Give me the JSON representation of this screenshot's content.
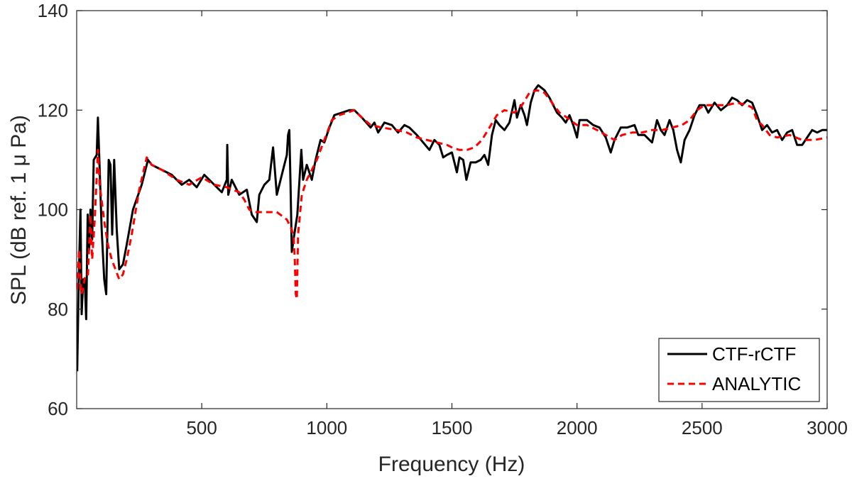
{
  "chart_data": {
    "type": "line",
    "xlabel": "Frequency (Hz)",
    "ylabel": "SPL (dB ref. 1 μ Pa)",
    "xlim": [
      0,
      3000
    ],
    "ylim": [
      60,
      140
    ],
    "xticks": [
      500,
      1000,
      1500,
      2000,
      2500,
      3000
    ],
    "xtick_labels": [
      "500",
      "1000",
      "1500",
      "2000",
      "2500",
      "3000"
    ],
    "yticks": [
      60,
      80,
      100,
      120,
      140
    ],
    "ytick_labels": [
      "60",
      "80",
      "100",
      "120",
      "140"
    ],
    "grid": false,
    "legend_position": "bottom-right",
    "series": [
      {
        "name": "CTF-rCTF",
        "color": "#000000",
        "style": "solid",
        "points": [
          [
            2,
            67.5
          ],
          [
            8,
            85
          ],
          [
            15,
            100
          ],
          [
            20,
            79
          ],
          [
            26,
            86
          ],
          [
            32,
            86
          ],
          [
            38,
            78
          ],
          [
            44,
            99
          ],
          [
            50,
            92
          ],
          [
            55,
            100
          ],
          [
            62,
            94
          ],
          [
            68,
            110
          ],
          [
            80,
            111
          ],
          [
            85,
            118.5
          ],
          [
            92,
            108
          ],
          [
            100,
            96
          ],
          [
            110,
            86
          ],
          [
            118,
            83
          ],
          [
            128,
            110
          ],
          [
            135,
            109
          ],
          [
            142,
            95
          ],
          [
            150,
            110
          ],
          [
            160,
            96
          ],
          [
            170,
            88
          ],
          [
            185,
            89
          ],
          [
            200,
            93
          ],
          [
            225,
            100
          ],
          [
            260,
            105
          ],
          [
            285,
            110
          ],
          [
            300,
            109
          ],
          [
            340,
            108
          ],
          [
            380,
            107
          ],
          [
            400,
            106
          ],
          [
            420,
            105
          ],
          [
            450,
            106
          ],
          [
            480,
            104.5
          ],
          [
            510,
            107
          ],
          [
            550,
            105
          ],
          [
            580,
            103.5
          ],
          [
            600,
            106
          ],
          [
            602,
            113
          ],
          [
            606,
            103
          ],
          [
            620,
            106
          ],
          [
            650,
            103
          ],
          [
            680,
            104
          ],
          [
            700,
            99
          ],
          [
            720,
            97.5
          ],
          [
            730,
            103
          ],
          [
            750,
            105
          ],
          [
            770,
            106
          ],
          [
            785,
            112.5
          ],
          [
            800,
            103
          ],
          [
            825,
            108
          ],
          [
            840,
            111
          ],
          [
            845,
            115
          ],
          [
            850,
            116
          ],
          [
            855,
            105
          ],
          [
            860,
            91.5
          ],
          [
            870,
            95
          ],
          [
            882,
            99
          ],
          [
            898,
            112
          ],
          [
            905,
            106
          ],
          [
            920,
            109
          ],
          [
            940,
            106
          ],
          [
            955,
            110
          ],
          [
            975,
            114
          ],
          [
            990,
            113.5
          ],
          [
            1010,
            116.5
          ],
          [
            1030,
            119
          ],
          [
            1060,
            119.5
          ],
          [
            1090,
            120
          ],
          [
            1110,
            120
          ],
          [
            1140,
            118.5
          ],
          [
            1175,
            116.5
          ],
          [
            1190,
            117.5
          ],
          [
            1205,
            115.5
          ],
          [
            1230,
            117.5
          ],
          [
            1260,
            117
          ],
          [
            1285,
            115.5
          ],
          [
            1310,
            117
          ],
          [
            1330,
            116.5
          ],
          [
            1360,
            115
          ],
          [
            1385,
            113.5
          ],
          [
            1410,
            112
          ],
          [
            1430,
            114
          ],
          [
            1450,
            113
          ],
          [
            1465,
            110.5
          ],
          [
            1480,
            111
          ],
          [
            1500,
            111.5
          ],
          [
            1520,
            107.5
          ],
          [
            1530,
            110.5
          ],
          [
            1545,
            110
          ],
          [
            1558,
            106
          ],
          [
            1575,
            109.5
          ],
          [
            1595,
            109.5
          ],
          [
            1615,
            110
          ],
          [
            1630,
            111
          ],
          [
            1645,
            109
          ],
          [
            1660,
            115
          ],
          [
            1675,
            118
          ],
          [
            1690,
            117
          ],
          [
            1710,
            116
          ],
          [
            1730,
            117.5
          ],
          [
            1750,
            122
          ],
          [
            1760,
            118.5
          ],
          [
            1775,
            121
          ],
          [
            1790,
            119
          ],
          [
            1800,
            117
          ],
          [
            1815,
            121.5
          ],
          [
            1830,
            124
          ],
          [
            1845,
            125
          ],
          [
            1870,
            124
          ],
          [
            1890,
            122.5
          ],
          [
            1905,
            121
          ],
          [
            1920,
            119.5
          ],
          [
            1940,
            118.5
          ],
          [
            1955,
            117.5
          ],
          [
            1970,
            119
          ],
          [
            1985,
            117
          ],
          [
            2000,
            114.5
          ],
          [
            2010,
            118
          ],
          [
            2040,
            118
          ],
          [
            2065,
            117
          ],
          [
            2090,
            116.5
          ],
          [
            2115,
            114.5
          ],
          [
            2135,
            111.5
          ],
          [
            2150,
            114
          ],
          [
            2175,
            116.5
          ],
          [
            2200,
            116.5
          ],
          [
            2230,
            117
          ],
          [
            2245,
            115
          ],
          [
            2270,
            115
          ],
          [
            2300,
            113.5
          ],
          [
            2320,
            118
          ],
          [
            2335,
            116
          ],
          [
            2350,
            115
          ],
          [
            2370,
            118
          ],
          [
            2385,
            116
          ],
          [
            2400,
            112
          ],
          [
            2415,
            109.5
          ],
          [
            2430,
            114
          ],
          [
            2450,
            116
          ],
          [
            2470,
            119
          ],
          [
            2490,
            121
          ],
          [
            2510,
            121
          ],
          [
            2525,
            119.5
          ],
          [
            2550,
            121.5
          ],
          [
            2575,
            120
          ],
          [
            2600,
            121
          ],
          [
            2620,
            122.5
          ],
          [
            2640,
            122
          ],
          [
            2660,
            121
          ],
          [
            2680,
            122
          ],
          [
            2700,
            121.5
          ],
          [
            2720,
            119
          ],
          [
            2740,
            116
          ],
          [
            2760,
            117
          ],
          [
            2780,
            115.5
          ],
          [
            2800,
            116
          ],
          [
            2820,
            114
          ],
          [
            2840,
            115.5
          ],
          [
            2860,
            116
          ],
          [
            2880,
            113
          ],
          [
            2900,
            113
          ],
          [
            2920,
            114.5
          ],
          [
            2940,
            116
          ],
          [
            2960,
            115.5
          ],
          [
            2980,
            116
          ],
          [
            3000,
            116
          ]
        ]
      },
      {
        "name": "ANALYTIC",
        "color": "#ff0000",
        "style": "dashed",
        "points": [
          [
            2,
            84
          ],
          [
            10,
            92
          ],
          [
            18,
            83
          ],
          [
            25,
            84
          ],
          [
            35,
            87
          ],
          [
            45,
            87
          ],
          [
            55,
            99
          ],
          [
            62,
            90
          ],
          [
            72,
            98
          ],
          [
            85,
            112
          ],
          [
            92,
            105
          ],
          [
            102,
            101
          ],
          [
            112,
            97
          ],
          [
            125,
            93
          ],
          [
            140,
            90
          ],
          [
            155,
            88
          ],
          [
            170,
            86
          ],
          [
            185,
            87
          ],
          [
            200,
            90
          ],
          [
            220,
            95
          ],
          [
            250,
            104
          ],
          [
            280,
            110.5
          ],
          [
            300,
            109
          ],
          [
            340,
            108
          ],
          [
            400,
            106
          ],
          [
            450,
            105
          ],
          [
            500,
            106.5
          ],
          [
            550,
            105
          ],
          [
            600,
            104.5
          ],
          [
            650,
            103.5
          ],
          [
            670,
            102
          ],
          [
            690,
            100
          ],
          [
            710,
            99.5
          ],
          [
            760,
            99.5
          ],
          [
            800,
            99.5
          ],
          [
            840,
            98
          ],
          [
            860,
            96
          ],
          [
            868,
            94
          ],
          [
            872,
            90
          ],
          [
            876,
            83
          ],
          [
            880,
            82
          ],
          [
            885,
            95
          ],
          [
            900,
            103
          ],
          [
            920,
            106
          ],
          [
            940,
            108
          ],
          [
            960,
            110
          ],
          [
            990,
            114
          ],
          [
            1020,
            118
          ],
          [
            1050,
            119
          ],
          [
            1110,
            120
          ],
          [
            1140,
            118.5
          ],
          [
            1175,
            117
          ],
          [
            1220,
            116.5
          ],
          [
            1280,
            116
          ],
          [
            1320,
            115.5
          ],
          [
            1360,
            114.5
          ],
          [
            1400,
            114
          ],
          [
            1440,
            113.5
          ],
          [
            1480,
            113
          ],
          [
            1500,
            112.5
          ],
          [
            1530,
            112
          ],
          [
            1560,
            112
          ],
          [
            1590,
            112.5
          ],
          [
            1620,
            114
          ],
          [
            1650,
            116.5
          ],
          [
            1680,
            119
          ],
          [
            1710,
            120
          ],
          [
            1750,
            119.5
          ],
          [
            1780,
            121
          ],
          [
            1810,
            123.5
          ],
          [
            1840,
            124
          ],
          [
            1870,
            123.5
          ],
          [
            1900,
            121.5
          ],
          [
            1930,
            119.5
          ],
          [
            1960,
            118.5
          ],
          [
            2000,
            117
          ],
          [
            2040,
            117
          ],
          [
            2080,
            116
          ],
          [
            2115,
            115
          ],
          [
            2150,
            114
          ],
          [
            2180,
            115
          ],
          [
            2220,
            115.5
          ],
          [
            2260,
            115.5
          ],
          [
            2300,
            116
          ],
          [
            2340,
            116
          ],
          [
            2380,
            116.5
          ],
          [
            2420,
            117
          ],
          [
            2450,
            118
          ],
          [
            2480,
            120
          ],
          [
            2510,
            121
          ],
          [
            2550,
            121
          ],
          [
            2600,
            121
          ],
          [
            2640,
            121.5
          ],
          [
            2680,
            121
          ],
          [
            2700,
            120.5
          ],
          [
            2720,
            118
          ],
          [
            2740,
            117
          ],
          [
            2770,
            115
          ],
          [
            2800,
            114.5
          ],
          [
            2850,
            115
          ],
          [
            2900,
            114
          ],
          [
            2950,
            114
          ],
          [
            3000,
            114.5
          ]
        ]
      }
    ]
  }
}
